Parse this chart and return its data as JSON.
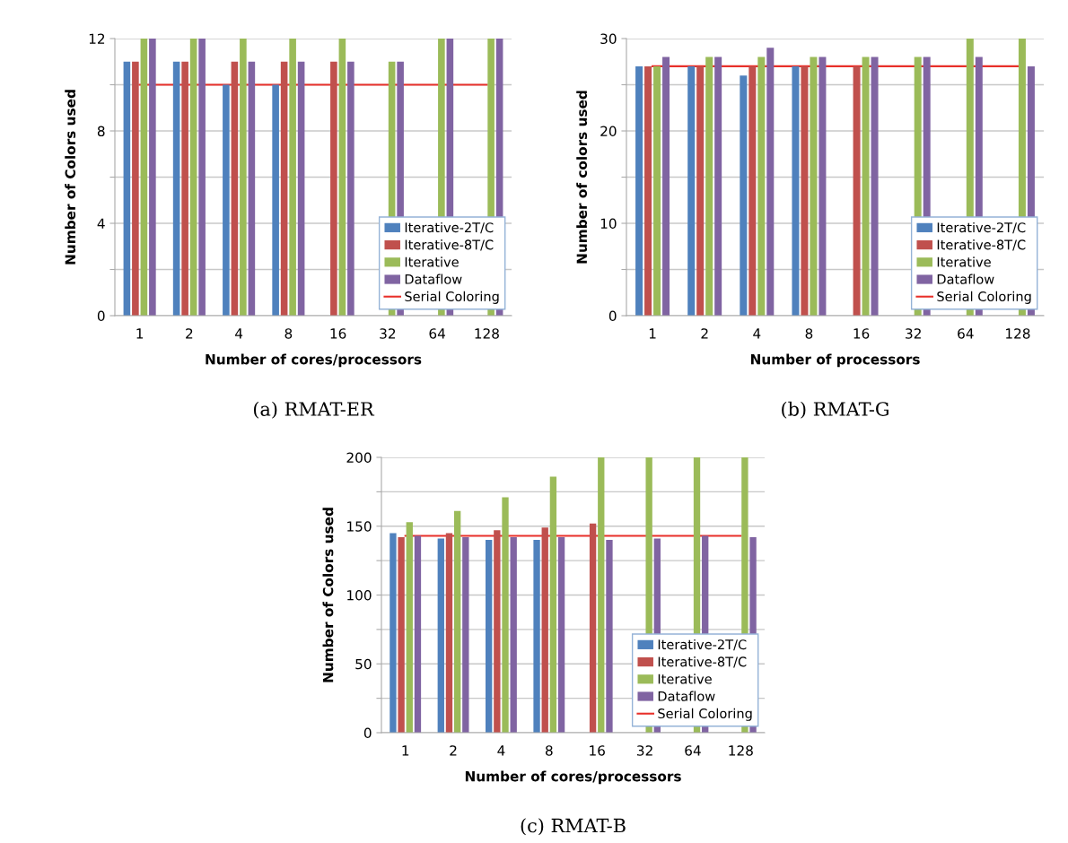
{
  "chart_data": [
    {
      "type": "bar",
      "title": "(a) RMAT-ER",
      "xlabel": "Number of cores/processors",
      "ylabel": "Number of Colors used",
      "categories": [
        "1",
        "2",
        "4",
        "8",
        "16",
        "32",
        "64",
        "128"
      ],
      "series": [
        {
          "name": "Iterative-2T/C",
          "color": "#4f81bd",
          "values": [
            11,
            11,
            10,
            10,
            null,
            null,
            null,
            null
          ]
        },
        {
          "name": "Iterative-8T/C",
          "color": "#c0504d",
          "values": [
            11,
            11,
            11,
            11,
            11,
            null,
            null,
            null
          ]
        },
        {
          "name": "Iterative",
          "color": "#9bbb59",
          "values": [
            12,
            12,
            12,
            12,
            12,
            11,
            12,
            12
          ]
        },
        {
          "name": "Dataflow",
          "color": "#8064a2",
          "values": [
            12,
            12,
            11,
            11,
            11,
            11,
            12,
            12
          ]
        },
        {
          "name": "Serial Coloring",
          "type": "line",
          "color": "#e8302a",
          "values": [
            10,
            10,
            10,
            10,
            10,
            10,
            10,
            10
          ]
        }
      ],
      "ylim": [
        0,
        12
      ],
      "yticks": [
        0,
        {
          "value": 2,
          "label": null
        },
        4,
        {
          "value": 6,
          "label": null
        },
        8,
        {
          "value": 10,
          "label": null
        },
        12
      ],
      "grid": "y",
      "legend": "bottom right",
      "marker": "none"
    },
    {
      "type": "bar",
      "title": "(b) RMAT-G",
      "xlabel": "Number of processors",
      "ylabel": "Number of colors used",
      "categories": [
        "1",
        "2",
        "4",
        "8",
        "16",
        "32",
        "64",
        "128"
      ],
      "series": [
        {
          "name": "Iterative-2T/C",
          "color": "#4f81bd",
          "values": [
            27,
            27,
            26,
            27,
            null,
            null,
            null,
            null
          ]
        },
        {
          "name": "Iterative-8T/C",
          "color": "#c0504d",
          "values": [
            27,
            27,
            27,
            27,
            27,
            null,
            null,
            null
          ]
        },
        {
          "name": "Iterative",
          "color": "#9bbb59",
          "values": [
            27,
            28,
            28,
            28,
            28,
            28,
            30,
            30
          ]
        },
        {
          "name": "Dataflow",
          "color": "#8064a2",
          "values": [
            28,
            28,
            29,
            28,
            28,
            28,
            28,
            27
          ]
        },
        {
          "name": "Serial Coloring",
          "type": "line",
          "color": "#e8302a",
          "values": [
            27,
            27,
            27,
            27,
            27,
            27,
            27,
            27
          ]
        }
      ],
      "ylim": [
        0,
        30
      ],
      "yticks": [
        0,
        {
          "value": 5,
          "label": null
        },
        10,
        {
          "value": 15,
          "label": null
        },
        20,
        {
          "value": 25,
          "label": null
        },
        30
      ],
      "grid": "y",
      "legend": "bottom right",
      "marker": "none"
    },
    {
      "type": "bar",
      "title": "(c) RMAT-B",
      "xlabel": "Number of cores/processors",
      "ylabel": "Number of Colors used",
      "categories": [
        "1",
        "2",
        "4",
        "8",
        "16",
        "32",
        "64",
        "128"
      ],
      "series": [
        {
          "name": "Iterative-2T/C",
          "color": "#4f81bd",
          "values": [
            145,
            141,
            140,
            140,
            null,
            null,
            null,
            null
          ]
        },
        {
          "name": "Iterative-8T/C",
          "color": "#c0504d",
          "values": [
            142,
            145,
            147,
            149,
            152,
            null,
            null,
            null
          ]
        },
        {
          "name": "Iterative",
          "color": "#9bbb59",
          "values": [
            153,
            161,
            171,
            186,
            200,
            200,
            200,
            200
          ]
        },
        {
          "name": "Dataflow",
          "color": "#8064a2",
          "values": [
            143,
            142,
            142,
            142,
            140,
            141,
            143,
            142
          ]
        },
        {
          "name": "Serial Coloring",
          "type": "line",
          "color": "#e8302a",
          "values": [
            143,
            143,
            143,
            143,
            143,
            143,
            143,
            143
          ]
        }
      ],
      "ylim": [
        0,
        200
      ],
      "yticks": [
        0,
        {
          "value": 25,
          "label": null
        },
        50,
        {
          "value": 75,
          "label": null
        },
        100,
        {
          "value": 125,
          "label": null
        },
        150,
        {
          "value": 175,
          "label": null
        },
        200
      ],
      "grid": "y",
      "legend": "bottom right",
      "marker": "none"
    }
  ]
}
